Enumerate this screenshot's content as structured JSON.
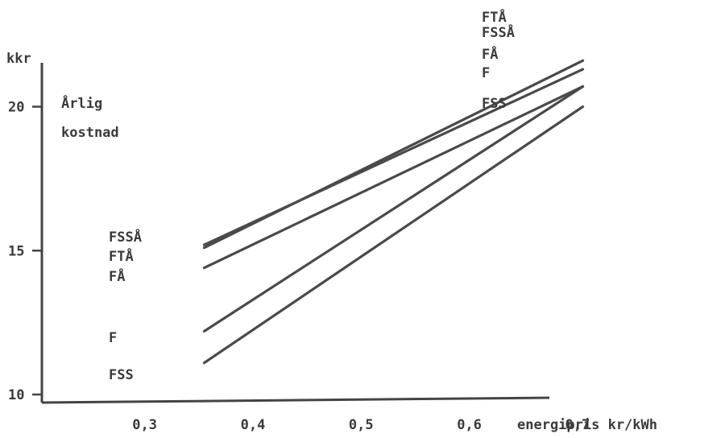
{
  "chart_data": {
    "type": "line",
    "title": "",
    "ylabel": "kkr",
    "ylabel_note": [
      "Årlig",
      "kostnad"
    ],
    "xlabel": "energipris kr/kWh",
    "xlim": [
      0.3,
      0.7
    ],
    "ylim": [
      10,
      20
    ],
    "xticks": [
      "0,3",
      "0,4",
      "0,5",
      "0,6",
      "0,7"
    ],
    "yticks": [
      "10",
      "15",
      "20"
    ],
    "grid": false,
    "series": [
      {
        "name": "FTÅ",
        "x": [
          0.35,
          0.7
        ],
        "y": [
          15.1,
          21.6
        ]
      },
      {
        "name": "FSSÅ",
        "x": [
          0.35,
          0.7
        ],
        "y": [
          15.2,
          21.3
        ]
      },
      {
        "name": "FÅ",
        "x": [
          0.35,
          0.7
        ],
        "y": [
          14.4,
          20.7
        ]
      },
      {
        "name": "F",
        "x": [
          0.35,
          0.7
        ],
        "y": [
          12.2,
          20.7
        ]
      },
      {
        "name": "FSS",
        "x": [
          0.35,
          0.7
        ],
        "y": [
          11.1,
          20.0
        ]
      }
    ],
    "left_labels_order": [
      "FSSÅ",
      "FTÅ",
      "FÅ",
      "F",
      "FSS"
    ],
    "right_labels_order": [
      "FTÅ",
      "FSSÅ",
      "FÅ",
      "F",
      "FSS"
    ]
  }
}
